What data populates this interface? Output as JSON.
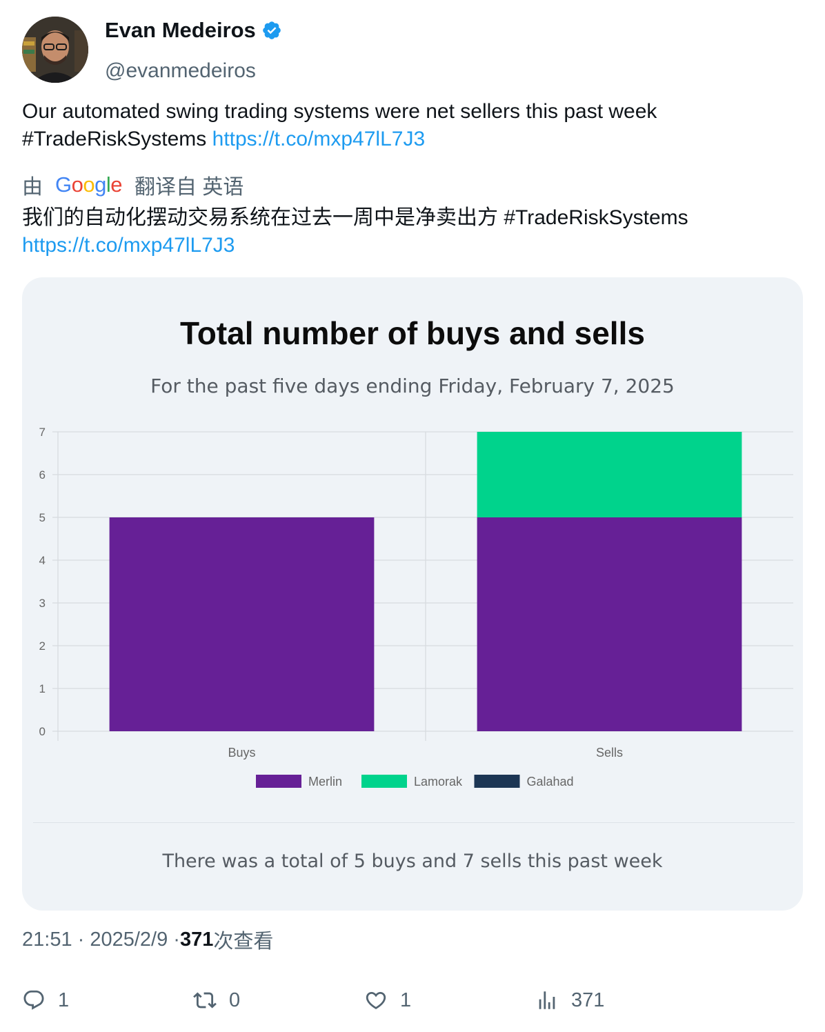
{
  "author": {
    "name": "Evan Medeiros",
    "handle": "@evanmedeiros"
  },
  "tweet": {
    "text": "Our automated swing trading systems were net sellers this past week #TradeRiskSystems",
    "link": "https://t.co/mxp47lL7J3"
  },
  "translation": {
    "prefix": "由",
    "provider": "Google",
    "suffix": "翻译自 英语",
    "text": "我们的自动化摆动交易系统在过去一周中是净卖出方 #TradeRiskSystems",
    "link": "https://t.co/mxp47lL7J3"
  },
  "card": {
    "footer": "There was a total of 5 buys and 7 sells this past week"
  },
  "chart_data": {
    "type": "bar",
    "stacked": true,
    "title": "Total number of buys and sells",
    "subtitle": "For the past five days ending Friday, February 7, 2025",
    "categories": [
      "Buys",
      "Sells"
    ],
    "series": [
      {
        "name": "Merlin",
        "values": [
          5,
          5
        ],
        "color": "#662096"
      },
      {
        "name": "Lamorak",
        "values": [
          0,
          2
        ],
        "color": "#00d38c"
      },
      {
        "name": "Galahad",
        "values": [
          0,
          0
        ],
        "color": "#1c3654"
      }
    ],
    "ylim": [
      0,
      7
    ],
    "yticks": [
      0,
      1,
      2,
      3,
      4,
      5,
      6,
      7
    ],
    "xlabel": "",
    "ylabel": "",
    "grid": true,
    "legend": "bottom"
  },
  "meta": {
    "time": "21:51 · 2025/2/9 · ",
    "views": "371",
    "views_label": "次查看"
  },
  "actions": {
    "replies": "1",
    "retweets": "0",
    "likes": "1",
    "views": "371"
  },
  "colors": {
    "link": "#1d9bf0",
    "secondary": "#536471",
    "verified": "#1d9bf0"
  }
}
